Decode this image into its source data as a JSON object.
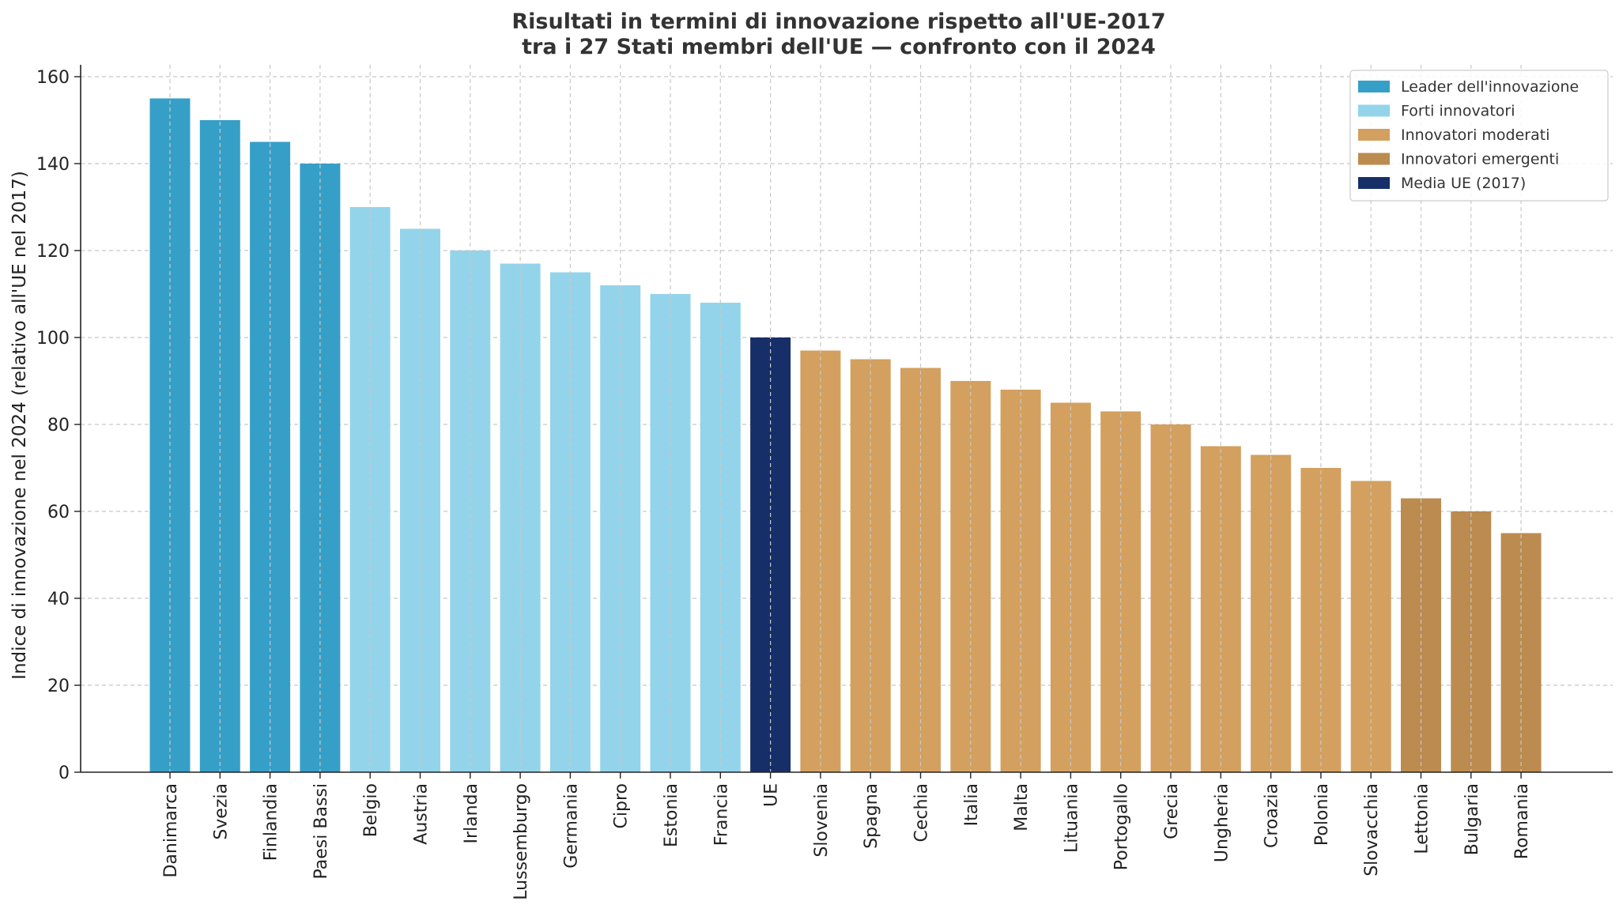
{
  "chart_data": {
    "type": "bar",
    "title": "Risultati in termini di innovazione rispetto all'UE-2017",
    "subtitle": "tra i 27 Stati membri dell'UE — confronto con il 2024",
    "xlabel": "",
    "ylabel": "Indice di innovazione nel 2024 (relativo all'UE nel 2017)",
    "ylim": [
      0,
      162
    ],
    "yticks": [
      0,
      20,
      40,
      60,
      80,
      100,
      120,
      140,
      160
    ],
    "grid": true,
    "legend_position": "top-right",
    "categories": [
      "Danimarca",
      "Svezia",
      "Finlandia",
      "Paesi Bassi",
      "Belgio",
      "Austria",
      "Irlanda",
      "Lussemburgo",
      "Germania",
      "Cipro",
      "Estonia",
      "Francia",
      "UE",
      "Slovenia",
      "Spagna",
      "Cechia",
      "Italia",
      "Malta",
      "Lituania",
      "Portogallo",
      "Grecia",
      "Ungheria",
      "Croazia",
      "Polonia",
      "Slovacchia",
      "Lettonia",
      "Bulgaria",
      "Romania"
    ],
    "values": [
      155,
      150,
      145,
      140,
      130,
      125,
      120,
      117,
      115,
      112,
      110,
      108,
      100,
      97,
      95,
      93,
      90,
      88,
      85,
      83,
      80,
      75,
      73,
      70,
      67,
      63,
      60,
      55
    ],
    "groups": [
      "leader",
      "leader",
      "leader",
      "leader",
      "forti",
      "forti",
      "forti",
      "forti",
      "forti",
      "forti",
      "forti",
      "forti",
      "media",
      "moderati",
      "moderati",
      "moderati",
      "moderati",
      "moderati",
      "moderati",
      "moderati",
      "moderati",
      "moderati",
      "moderati",
      "moderati",
      "moderati",
      "emergenti",
      "emergenti",
      "emergenti"
    ],
    "legend": [
      {
        "key": "leader",
        "label": "Leader dell'innovazione",
        "color": "#369fc8"
      },
      {
        "key": "forti",
        "label": "Forti innovatori",
        "color": "#93d4ea"
      },
      {
        "key": "moderati",
        "label": "Innovatori moderati",
        "color": "#d3a05f"
      },
      {
        "key": "emergenti",
        "label": "Innovatori emergenti",
        "color": "#bb8b4f"
      },
      {
        "key": "media",
        "label": "Media UE (2017)",
        "color": "#172f69"
      }
    ]
  }
}
